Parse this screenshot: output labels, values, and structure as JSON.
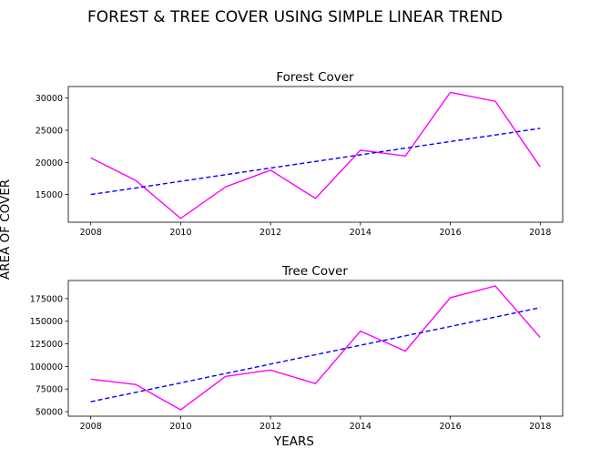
{
  "suptitle": "FOREST & TREE COVER USING SIMPLE LINEAR TREND",
  "supylabel": "AREA OF COVER",
  "supxlabel": "YEARS",
  "chart_data": [
    {
      "type": "line",
      "title": "Forest Cover",
      "x": [
        2008,
        2009,
        2010,
        2011,
        2012,
        2013,
        2014,
        2015,
        2016,
        2017,
        2018
      ],
      "xticks": [
        "2008",
        "2010",
        "2012",
        "2014",
        "2016",
        "2018"
      ],
      "yticks": [
        "15000",
        "20000",
        "25000",
        "30000"
      ],
      "xlim": [
        2007.5,
        2018.5
      ],
      "ylim": [
        10700,
        31800
      ],
      "series": [
        {
          "kind": "actual",
          "color": "#ff00ff",
          "style": "solid",
          "values": [
            20700,
            17200,
            11300,
            16200,
            18800,
            14400,
            21900,
            21000,
            30900,
            29500,
            19300
          ]
        },
        {
          "kind": "trend",
          "color": "#0000ff",
          "style": "dashed",
          "values": [
            15000,
            16030,
            17060,
            18090,
            19120,
            20150,
            21180,
            22210,
            23240,
            24270,
            25300
          ]
        }
      ]
    },
    {
      "type": "line",
      "title": "Tree Cover",
      "x": [
        2008,
        2009,
        2010,
        2011,
        2012,
        2013,
        2014,
        2015,
        2016,
        2017,
        2018
      ],
      "xticks": [
        "2008",
        "2010",
        "2012",
        "2014",
        "2016",
        "2018"
      ],
      "yticks": [
        "50000",
        "75000",
        "100000",
        "125000",
        "150000",
        "175000"
      ],
      "xlim": [
        2007.5,
        2018.5
      ],
      "ylim": [
        45000,
        195000
      ],
      "series": [
        {
          "kind": "actual",
          "color": "#ff00ff",
          "style": "solid",
          "values": [
            86000,
            80000,
            52000,
            89000,
            96000,
            81000,
            139000,
            117000,
            176000,
            189000,
            132000
          ]
        },
        {
          "kind": "trend",
          "color": "#0000ff",
          "style": "dashed",
          "values": [
            61000,
            71400,
            81800,
            92200,
            102600,
            113000,
            123400,
            133800,
            144200,
            154600,
            165000
          ]
        }
      ]
    }
  ]
}
